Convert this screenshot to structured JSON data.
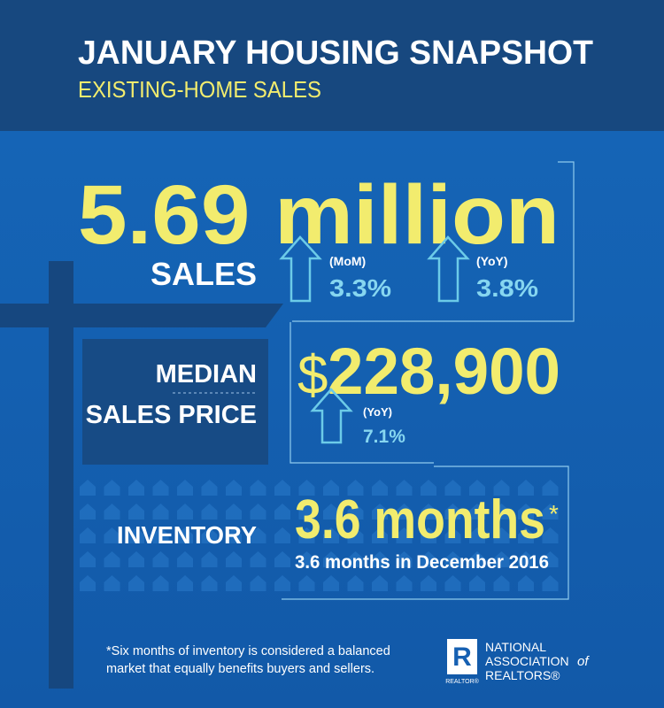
{
  "header": {
    "title": "JANUARY  HOUSING SNAPSHOT",
    "subtitle": "EXISTING-HOME SALES"
  },
  "sales": {
    "value": "5.69 million",
    "label": "SALES",
    "changes": [
      {
        "period": "(MoM)",
        "value": "3.3%"
      },
      {
        "period": "(YoY)",
        "value": "3.8%"
      }
    ]
  },
  "price": {
    "label_lines": [
      "MEDIAN",
      "SALES PRICE"
    ],
    "currency": "$",
    "amount": "228,900",
    "change": {
      "period": "(YoY)",
      "value": "7.1%"
    }
  },
  "inventory": {
    "label": "INVENTORY",
    "value": "3.6 months",
    "asterisk": "*",
    "note": "3.6 months in December 2016"
  },
  "footnote": {
    "lines": [
      "*Six months of inventory is considered a balanced",
      "market that equally benefits buyers and sellers."
    ]
  },
  "logo": {
    "mark": "R",
    "sub": "REALTOR®",
    "lines": [
      "NATIONAL",
      "ASSOCIATION",
      "of",
      "REALTORS®"
    ]
  }
}
